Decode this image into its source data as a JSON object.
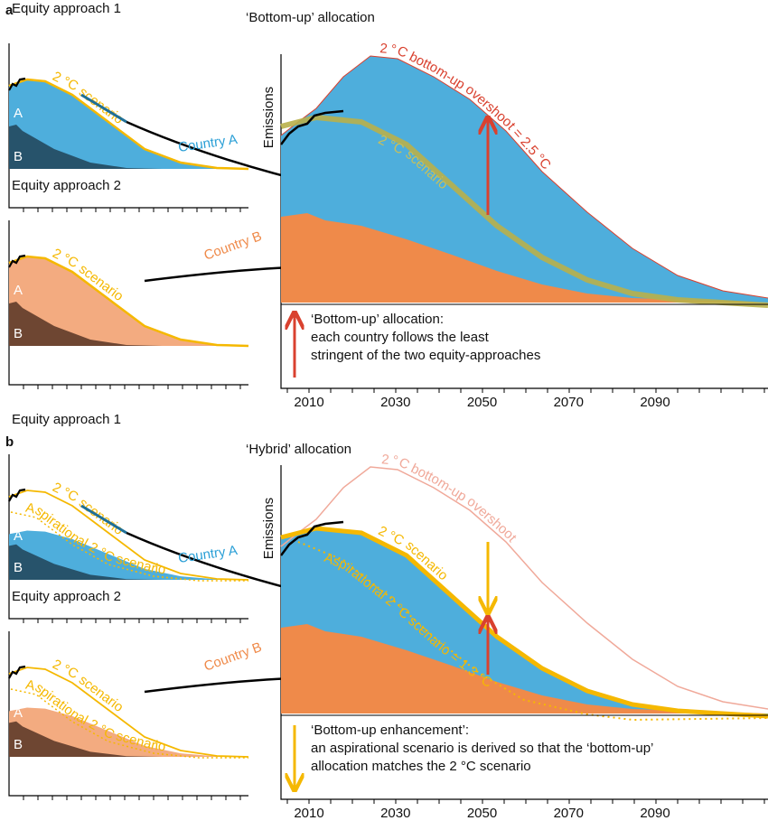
{
  "panels": [
    {
      "label": "a",
      "title": "‘Bottom-up’ allocation",
      "small_panels": [
        {
          "title": "Equity approach 1",
          "scenario_label": "2 °C scenario",
          "aspirational_label": null,
          "region_labels": [
            "A",
            "B"
          ],
          "country_label": "Country A"
        },
        {
          "title": "Equity approach 2",
          "scenario_label": "2 °C scenario",
          "aspirational_label": null,
          "region_labels": [
            "A",
            "B"
          ],
          "country_label": "Country B"
        }
      ],
      "main": {
        "y_label": "Emissions",
        "overshoot_label": "2 °C bottom-up overshoot = 2.5 °C",
        "scenario_label": "2 °C scenario",
        "aspirational_label": null,
        "note": [
          "‘Bottom-up’ allocation:",
          "each country follows the least",
          "stringent of the two equity-approaches"
        ],
        "x_ticks": [
          "2010",
          "2030",
          "2050",
          "2070",
          "2090"
        ]
      }
    },
    {
      "label": "b",
      "title": "‘Hybrid’ allocation",
      "small_panels": [
        {
          "title": "Equity approach 1",
          "scenario_label": "2 °C scenario",
          "aspirational_label": "Aspirational 2 °C scenario",
          "region_labels": [
            "A",
            "B"
          ],
          "country_label": "Country A"
        },
        {
          "title": "Equity approach 2",
          "scenario_label": "2 °C scenario",
          "aspirational_label": "Aspirational 2 °C scenario",
          "region_labels": [
            "A",
            "B"
          ],
          "country_label": "Country B"
        }
      ],
      "main": {
        "y_label": "Emissions",
        "overshoot_label": "2 °C bottom-up overshoot",
        "scenario_label": "2 °C scenario",
        "aspirational_label": "Aspirational 2 °C scenario = 1.3 °C",
        "note": [
          "‘Bottom-up enhancement’:",
          "an aspirational scenario is derived so that the ‘bottom-up’",
          "allocation matches the 2 °C scenario"
        ],
        "x_ticks": [
          "2010",
          "2030",
          "2050",
          "2070",
          "2090"
        ]
      }
    }
  ]
}
